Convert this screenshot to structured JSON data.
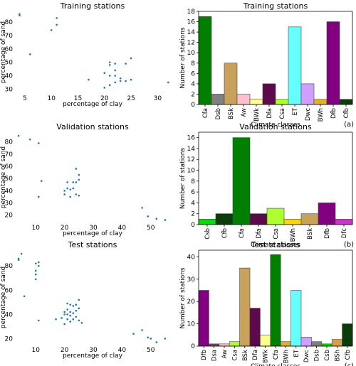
{
  "panel_tags": [
    "(a)",
    "(b)",
    "(c)"
  ],
  "chart_data": [
    {
      "type": "scatter",
      "title": "Training stations",
      "xlabel": "percentage of clay",
      "ylabel": "percentage of sand",
      "xlim": [
        3,
        32.5
      ],
      "ylim": [
        27,
        88
      ],
      "xticks": [
        5,
        10,
        15,
        20,
        25,
        30
      ],
      "yticks": [
        30,
        40,
        50,
        60,
        70,
        80
      ],
      "color": "#1f77b4",
      "points": [
        [
          4,
          86
        ],
        [
          4,
          85
        ],
        [
          6,
          56
        ],
        [
          10,
          74
        ],
        [
          11,
          83
        ],
        [
          11,
          78
        ],
        [
          17,
          37
        ],
        [
          20,
          31
        ],
        [
          20,
          42
        ],
        [
          21,
          40
        ],
        [
          21,
          50
        ],
        [
          21,
          48
        ],
        [
          21,
          33
        ],
        [
          22,
          49
        ],
        [
          22,
          44
        ],
        [
          22,
          40
        ],
        [
          22,
          35
        ],
        [
          23,
          38
        ],
        [
          23,
          36
        ],
        [
          24,
          49
        ],
        [
          24,
          36
        ],
        [
          25,
          53
        ],
        [
          25,
          37
        ],
        [
          32,
          35
        ]
      ]
    },
    {
      "type": "bar",
      "title": "Training stations",
      "xlabel": "Climate classes",
      "ylabel": "Number of stations",
      "ylim": [
        0,
        18
      ],
      "yticks": [
        0,
        2,
        4,
        6,
        8,
        10,
        12,
        14,
        16,
        18
      ],
      "categories": [
        "Cfa",
        "Dsb",
        "BSk",
        "Aw",
        "BWk",
        "Dfa",
        "Csa",
        "ET",
        "Dwc",
        "BWh",
        "Dfb",
        "Cfb"
      ],
      "values": [
        17,
        2,
        8,
        2,
        1,
        4,
        1,
        15,
        4,
        1,
        16,
        1
      ],
      "colors": [
        "#007f00",
        "#808080",
        "#c8a15a",
        "#ffc0cb",
        "#ffff90",
        "#5c0a4c",
        "#adff2f",
        "#66ffff",
        "#cfa0ff",
        "#e0b030",
        "#800080",
        "#0a3d0a"
      ]
    },
    {
      "type": "scatter",
      "title": "Validation stations",
      "xlabel": "percentage of clay",
      "ylabel": "percentage of sand",
      "xlim": [
        2.5,
        57
      ],
      "ylim": [
        14,
        88
      ],
      "xticks": [
        10,
        20,
        30,
        40,
        50
      ],
      "yticks": [
        20,
        30,
        40,
        50,
        60,
        70,
        80
      ],
      "color": "#1f77b4",
      "points": [
        [
          4,
          85
        ],
        [
          8,
          82
        ],
        [
          11,
          79
        ],
        [
          11,
          35
        ],
        [
          12,
          48
        ],
        [
          20,
          37
        ],
        [
          20,
          40
        ],
        [
          21,
          42
        ],
        [
          21,
          47
        ],
        [
          22,
          35
        ],
        [
          22,
          41
        ],
        [
          23,
          42
        ],
        [
          23,
          47
        ],
        [
          24,
          47
        ],
        [
          24,
          37
        ],
        [
          24,
          58
        ],
        [
          25,
          49
        ],
        [
          25,
          53
        ],
        [
          25,
          36
        ],
        [
          47,
          26
        ],
        [
          49,
          19
        ],
        [
          52,
          17
        ],
        [
          55,
          16
        ]
      ]
    },
    {
      "type": "bar",
      "title": "Validation stations",
      "xlabel": "Climate classes",
      "ylabel": "Number of stations",
      "ylim": [
        0,
        17
      ],
      "yticks": [
        0,
        2,
        4,
        6,
        8,
        10,
        12,
        14,
        16
      ],
      "categories": [
        "Csb",
        "Cfb",
        "Cfa",
        "Dfa",
        "Csa",
        "BWh",
        "BSk",
        "Dfb",
        "Dfc"
      ],
      "values": [
        1,
        2,
        16,
        2,
        3,
        1,
        2,
        4,
        1
      ],
      "colors": [
        "#00e000",
        "#0a3d0a",
        "#007f00",
        "#5c0a4c",
        "#adff2f",
        "#ffd700",
        "#c8a15a",
        "#800080",
        "#cc33cc"
      ]
    },
    {
      "type": "scatter",
      "title": "Test stations",
      "xlabel": "percentage of clay",
      "ylabel": "percentage of sand",
      "xlim": [
        2.5,
        57
      ],
      "ylim": [
        15,
        93
      ],
      "xticks": [
        10,
        20,
        30,
        40,
        50
      ],
      "yticks": [
        20,
        40,
        60,
        80
      ],
      "color": "#1f77b4",
      "points": [
        [
          4,
          86
        ],
        [
          4,
          85
        ],
        [
          5,
          90
        ],
        [
          6,
          55
        ],
        [
          10,
          82
        ],
        [
          10,
          76
        ],
        [
          10,
          73
        ],
        [
          10,
          69
        ],
        [
          11,
          83
        ],
        [
          11,
          80
        ],
        [
          11,
          35
        ],
        [
          17,
          36
        ],
        [
          19,
          37
        ],
        [
          20,
          42
        ],
        [
          20,
          40
        ],
        [
          20,
          32
        ],
        [
          21,
          49
        ],
        [
          21,
          44
        ],
        [
          21,
          40
        ],
        [
          21,
          36
        ],
        [
          22,
          48
        ],
        [
          22,
          42
        ],
        [
          22,
          39
        ],
        [
          22,
          34
        ],
        [
          23,
          47
        ],
        [
          23,
          41
        ],
        [
          23,
          36
        ],
        [
          24,
          48
        ],
        [
          24,
          43
        ],
        [
          24,
          38
        ],
        [
          25,
          52
        ],
        [
          25,
          45
        ],
        [
          25,
          35
        ],
        [
          26,
          33
        ],
        [
          44,
          24
        ],
        [
          47,
          27
        ],
        [
          49,
          21
        ],
        [
          50,
          20
        ],
        [
          52,
          17
        ],
        [
          55,
          20
        ]
      ]
    },
    {
      "type": "bar",
      "title": "Test stations",
      "xlabel": "Climate classes",
      "ylabel": "Number of stations",
      "ylim": [
        0,
        43
      ],
      "yticks": [
        0,
        10,
        20,
        30,
        40
      ],
      "categories": [
        "Dfb",
        "Dsa",
        "Aw",
        "Csa",
        "BSk",
        "Dfa",
        "BWk",
        "Cfa",
        "BWh",
        "ET",
        "Dwc",
        "Dsb",
        "Csb",
        "BSh",
        "Cfb"
      ],
      "values": [
        25,
        1,
        1,
        2,
        35,
        17,
        5,
        41,
        2,
        25,
        4,
        2,
        1,
        3,
        10
      ],
      "colors": [
        "#800080",
        "#6b4a6b",
        "#ffc0cb",
        "#adff2f",
        "#c8a15a",
        "#5c0a4c",
        "#ffff90",
        "#007f00",
        "#e0b030",
        "#66ffff",
        "#cfa0ff",
        "#808080",
        "#00e000",
        "#d2a050",
        "#0a3d0a"
      ]
    }
  ]
}
